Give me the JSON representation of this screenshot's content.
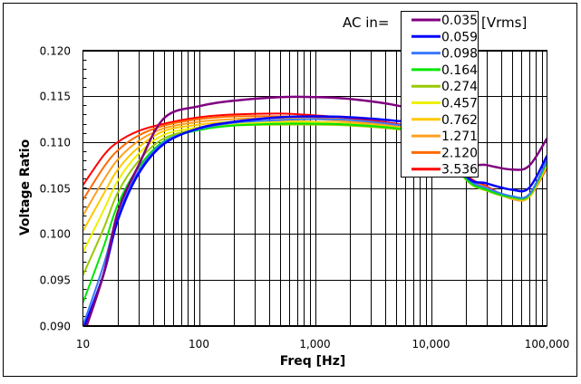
{
  "chart_data": {
    "type": "line",
    "title_prefix": "AC in=",
    "title_suffix": "[Vrms]",
    "xlabel": "Freq [Hz]",
    "ylabel": "Voltage Ratio",
    "xscale": "log",
    "xlim": [
      10,
      100000
    ],
    "ylim": [
      0.09,
      0.12
    ],
    "grid": true,
    "legend_position": "top-right",
    "x_tick_labels": [
      "10",
      "100",
      "1,000",
      "10,000",
      "100,000"
    ],
    "x_tick_values": [
      10,
      100,
      1000,
      10000,
      100000
    ],
    "y_tick_labels": [
      "0.090",
      "0.095",
      "0.100",
      "0.105",
      "0.110",
      "0.115",
      "0.120"
    ],
    "y_tick_values": [
      0.09,
      0.095,
      0.1,
      0.105,
      0.11,
      0.115,
      0.12
    ],
    "x": [
      10,
      15,
      20,
      30,
      50,
      100,
      200,
      500,
      1000,
      2000,
      5000,
      10000,
      20000,
      30000,
      50000,
      70000,
      100000
    ],
    "series": [
      {
        "name": "0.035",
        "color": "#800080",
        "values": [
          0.0888,
          0.0955,
          0.1024,
          0.1074,
          0.1126,
          0.1139,
          0.1145,
          0.1149,
          0.1149,
          0.1147,
          0.114,
          0.1128,
          0.108,
          0.1075,
          0.107,
          0.1074,
          0.1104
        ]
      },
      {
        "name": "0.059",
        "color": "#0000ff",
        "values": [
          0.0895,
          0.0955,
          0.1015,
          0.1065,
          0.1098,
          0.1115,
          0.1122,
          0.1127,
          0.1128,
          0.1127,
          0.1123,
          0.1117,
          0.1063,
          0.1055,
          0.1048,
          0.105,
          0.1085
        ]
      },
      {
        "name": "0.098",
        "color": "#3a78ff",
        "values": [
          0.09,
          0.0965,
          0.102,
          0.1068,
          0.11,
          0.1114,
          0.1121,
          0.1124,
          0.1125,
          0.1124,
          0.1119,
          0.1112,
          0.1062,
          0.105,
          0.1041,
          0.1043,
          0.108
        ]
      },
      {
        "name": "0.164",
        "color": "#00e600",
        "values": [
          0.0925,
          0.0985,
          0.1032,
          0.1072,
          0.1101,
          0.1113,
          0.1118,
          0.112,
          0.112,
          0.1119,
          0.1115,
          0.1108,
          0.106,
          0.1048,
          0.104,
          0.1042,
          0.1078
        ]
      },
      {
        "name": "0.274",
        "color": "#99c800",
        "values": [
          0.0955,
          0.1005,
          0.1045,
          0.1079,
          0.1104,
          0.1114,
          0.1118,
          0.1119,
          0.1119,
          0.1118,
          0.1114,
          0.1107,
          0.1059,
          0.1047,
          0.1039,
          0.1041,
          0.1077
        ]
      },
      {
        "name": "0.457",
        "color": "#f0f000",
        "values": [
          0.098,
          0.1025,
          0.1058,
          0.1087,
          0.1108,
          0.1116,
          0.112,
          0.1121,
          0.1121,
          0.1119,
          0.1115,
          0.1108,
          0.106,
          0.1048,
          0.1039,
          0.1041,
          0.1076
        ]
      },
      {
        "name": "0.762",
        "color": "#ffc800",
        "values": [
          0.1003,
          0.1043,
          0.107,
          0.1094,
          0.1112,
          0.1119,
          0.1122,
          0.1123,
          0.1122,
          0.112,
          0.1116,
          0.1109,
          0.1061,
          0.1049,
          0.1039,
          0.104,
          0.1075
        ]
      },
      {
        "name": "1.271",
        "color": "#ffa020",
        "values": [
          0.102,
          0.1058,
          0.1081,
          0.1101,
          0.1115,
          0.1122,
          0.1125,
          0.1126,
          0.1125,
          0.1122,
          0.1117,
          0.111,
          0.1062,
          0.105,
          0.1038,
          0.104,
          0.1074
        ]
      },
      {
        "name": "2.120",
        "color": "#ff6a00",
        "values": [
          0.1037,
          0.1072,
          0.1091,
          0.1107,
          0.1118,
          0.1125,
          0.1128,
          0.1128,
          0.1127,
          0.1124,
          0.1118,
          0.1111,
          0.1063,
          0.1051,
          0.1038,
          0.104,
          0.1073
        ]
      },
      {
        "name": "3.536",
        "color": "#ff0000",
        "values": [
          0.1053,
          0.1085,
          0.11,
          0.1112,
          0.112,
          0.1127,
          0.113,
          0.1131,
          0.1129,
          0.1126,
          0.112,
          0.1112,
          0.1065,
          0.1052,
          0.1038,
          0.104,
          0.1072
        ]
      }
    ]
  }
}
